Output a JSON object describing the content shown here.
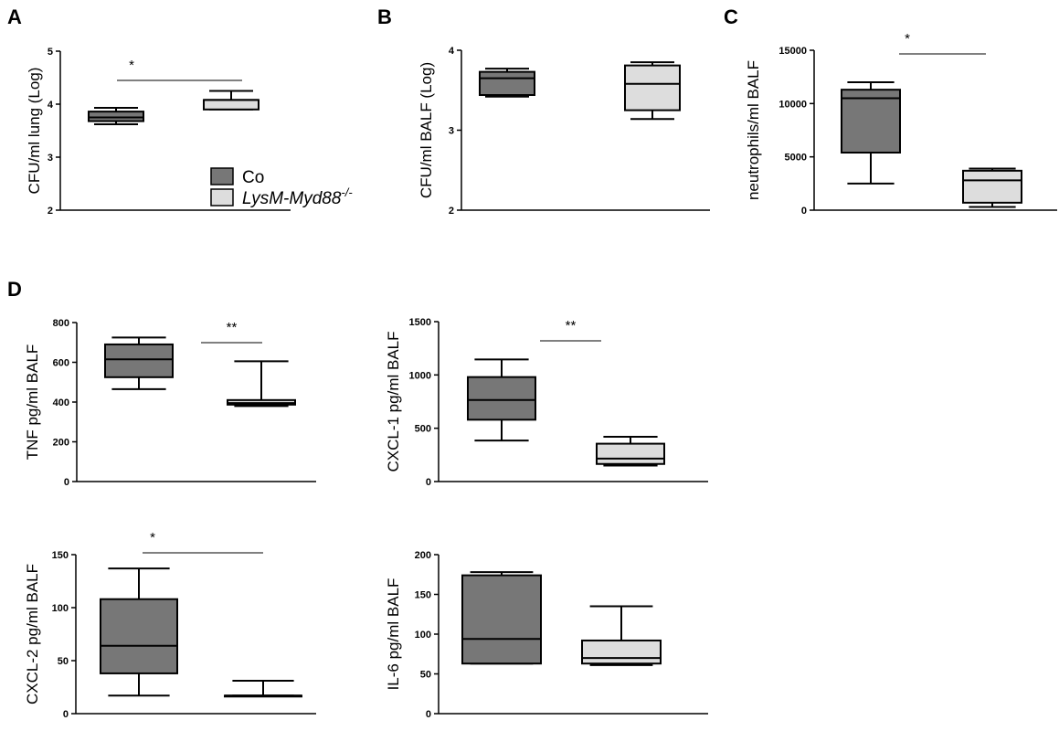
{
  "colors": {
    "dark": "#777777",
    "light": "#dddddd",
    "stroke": "#000000"
  },
  "panel_letters": {
    "A": "A",
    "B": "B",
    "C": "C",
    "D": "D"
  },
  "legend": {
    "items": [
      "Co",
      "LysM-Myd88"
    ],
    "superscript": "-/-",
    "placement": "inside-bottom-right of panel A"
  },
  "chart_data": [
    {
      "id": "A",
      "type": "box",
      "ylabel": "CFU/ml lung (Log)",
      "ylim": [
        2,
        5
      ],
      "yticks": [
        2,
        3,
        4,
        5
      ],
      "series": [
        {
          "name": "Co",
          "min": 3.62,
          "q1": 3.68,
          "median": 3.75,
          "q3": 3.86,
          "max": 3.93
        },
        {
          "name": "LysM-Myd88-/-",
          "min": 3.9,
          "q1": 3.9,
          "median": 4.08,
          "q3": 4.08,
          "max": 4.25
        }
      ],
      "significance": "*"
    },
    {
      "id": "B",
      "type": "box",
      "ylabel": "CFU/ml BALF (Log)",
      "ylim": [
        2,
        4
      ],
      "yticks": [
        2,
        3,
        4
      ],
      "series": [
        {
          "name": "Co",
          "min": 3.42,
          "q1": 3.44,
          "median": 3.65,
          "q3": 3.73,
          "max": 3.77
        },
        {
          "name": "LysM-Myd88-/-",
          "min": 3.14,
          "q1": 3.25,
          "median": 3.58,
          "q3": 3.81,
          "max": 3.85
        }
      ],
      "significance": ""
    },
    {
      "id": "C",
      "type": "box",
      "ylabel": "neutrophils/ml BALF",
      "ylim": [
        0,
        15000
      ],
      "yticks": [
        0,
        5000,
        10000,
        15000
      ],
      "series": [
        {
          "name": "Co",
          "min": 2500,
          "q1": 5400,
          "median": 10500,
          "q3": 11300,
          "max": 12000
        },
        {
          "name": "LysM-Myd88-/-",
          "min": 300,
          "q1": 700,
          "median": 2800,
          "q3": 3700,
          "max": 3900
        }
      ],
      "significance": "*"
    },
    {
      "id": "D1",
      "type": "box",
      "ylabel": "TNF pg/ml BALF",
      "ylim": [
        0,
        800
      ],
      "yticks": [
        0,
        200,
        400,
        600,
        800
      ],
      "series": [
        {
          "name": "Co",
          "min": 465,
          "q1": 525,
          "median": 615,
          "q3": 690,
          "max": 725
        },
        {
          "name": "LysM-Myd88-/-",
          "min": 380,
          "q1": 387,
          "median": 395,
          "q3": 410,
          "max": 605
        }
      ],
      "significance": "**"
    },
    {
      "id": "D2",
      "type": "box",
      "ylabel": "CXCL-1 pg/ml BALF",
      "ylim": [
        0,
        1500
      ],
      "yticks": [
        0,
        500,
        1000,
        1500
      ],
      "series": [
        {
          "name": "Co",
          "min": 385,
          "q1": 580,
          "median": 765,
          "q3": 980,
          "max": 1145
        },
        {
          "name": "LysM-Myd88-/-",
          "min": 150,
          "q1": 165,
          "median": 215,
          "q3": 355,
          "max": 420
        }
      ],
      "significance": "**"
    },
    {
      "id": "D3",
      "type": "box",
      "ylabel": "CXCL-2 pg/ml BALF",
      "ylim": [
        0,
        150
      ],
      "yticks": [
        0,
        50,
        100,
        150
      ],
      "series": [
        {
          "name": "Co",
          "min": 17,
          "q1": 38,
          "median": 64,
          "q3": 108,
          "max": 137
        },
        {
          "name": "LysM-Myd88-/-",
          "min": 17,
          "q1": 17,
          "median": 17,
          "q3": 17,
          "max": 31
        }
      ],
      "significance": "*"
    },
    {
      "id": "D4",
      "type": "box",
      "ylabel": "IL-6 pg/ml BALF",
      "ylim": [
        0,
        200
      ],
      "yticks": [
        0,
        50,
        100,
        150,
        200
      ],
      "series": [
        {
          "name": "Co",
          "min": 63,
          "q1": 63,
          "median": 94,
          "q3": 174,
          "max": 178
        },
        {
          "name": "LysM-Myd88-/-",
          "min": 61,
          "q1": 63,
          "median": 70,
          "q3": 92,
          "max": 135
        }
      ],
      "significance": ""
    }
  ]
}
